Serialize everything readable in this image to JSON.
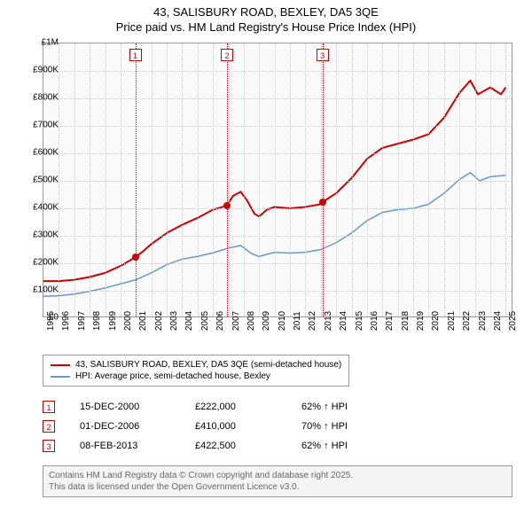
{
  "title": {
    "line1": "43, SALISBURY ROAD, BEXLEY, DA5 3QE",
    "line2": "Price paid vs. HM Land Registry's House Price Index (HPI)"
  },
  "chart": {
    "type": "line",
    "background_color": "#fafafa",
    "border_color": "#999999",
    "grid_color": "#cccccc",
    "ylim": [
      0,
      1000000
    ],
    "ytick_step": 100000,
    "y_ticks": [
      {
        "v": 0,
        "label": "£0"
      },
      {
        "v": 100000,
        "label": "£100K"
      },
      {
        "v": 200000,
        "label": "£200K"
      },
      {
        "v": 300000,
        "label": "£300K"
      },
      {
        "v": 400000,
        "label": "£400K"
      },
      {
        "v": 500000,
        "label": "£500K"
      },
      {
        "v": 600000,
        "label": "£600K"
      },
      {
        "v": 700000,
        "label": "£700K"
      },
      {
        "v": 800000,
        "label": "£800K"
      },
      {
        "v": 900000,
        "label": "£900K"
      },
      {
        "v": 1000000,
        "label": "£1M"
      }
    ],
    "xlim": [
      1995,
      2025.5
    ],
    "x_ticks": [
      1995,
      1996,
      1997,
      1998,
      1999,
      2000,
      2001,
      2002,
      2003,
      2004,
      2005,
      2006,
      2007,
      2008,
      2009,
      2010,
      2011,
      2012,
      2013,
      2014,
      2015,
      2016,
      2017,
      2018,
      2019,
      2020,
      2021,
      2022,
      2023,
      2024,
      2025
    ],
    "marker_line_color": "#cc0000",
    "series": [
      {
        "name": "price_paid",
        "label": "43, SALISBURY ROAD, BEXLEY, DA5 3QE (semi-detached house)",
        "color": "#cc0000",
        "width": 2,
        "data": [
          [
            1995,
            135000
          ],
          [
            1996,
            135000
          ],
          [
            1997,
            140000
          ],
          [
            1998,
            150000
          ],
          [
            1999,
            165000
          ],
          [
            2000,
            190000
          ],
          [
            2000.96,
            222000
          ],
          [
            2001.5,
            245000
          ],
          [
            2002,
            270000
          ],
          [
            2003,
            310000
          ],
          [
            2004,
            340000
          ],
          [
            2005,
            365000
          ],
          [
            2006,
            395000
          ],
          [
            2006.92,
            410000
          ],
          [
            2007.3,
            445000
          ],
          [
            2007.8,
            460000
          ],
          [
            2008.2,
            430000
          ],
          [
            2008.7,
            380000
          ],
          [
            2009,
            370000
          ],
          [
            2009.5,
            395000
          ],
          [
            2010,
            405000
          ],
          [
            2011,
            400000
          ],
          [
            2012,
            405000
          ],
          [
            2013,
            415000
          ],
          [
            2013.11,
            422500
          ],
          [
            2014,
            455000
          ],
          [
            2015,
            510000
          ],
          [
            2016,
            580000
          ],
          [
            2017,
            620000
          ],
          [
            2018,
            635000
          ],
          [
            2019,
            650000
          ],
          [
            2020,
            670000
          ],
          [
            2021,
            730000
          ],
          [
            2022,
            820000
          ],
          [
            2022.7,
            865000
          ],
          [
            2023.2,
            815000
          ],
          [
            2024,
            840000
          ],
          [
            2024.7,
            815000
          ],
          [
            2025,
            840000
          ]
        ]
      },
      {
        "name": "hpi",
        "label": "HPI: Average price, semi-detached house, Bexley",
        "color": "#6699cc",
        "width": 1.5,
        "data": [
          [
            1995,
            80000
          ],
          [
            1996,
            82000
          ],
          [
            1997,
            88000
          ],
          [
            1998,
            98000
          ],
          [
            1999,
            110000
          ],
          [
            2000,
            125000
          ],
          [
            2001,
            140000
          ],
          [
            2002,
            165000
          ],
          [
            2003,
            195000
          ],
          [
            2004,
            215000
          ],
          [
            2005,
            225000
          ],
          [
            2006,
            238000
          ],
          [
            2007,
            255000
          ],
          [
            2007.8,
            265000
          ],
          [
            2008.5,
            235000
          ],
          [
            2009,
            225000
          ],
          [
            2010,
            240000
          ],
          [
            2011,
            237000
          ],
          [
            2012,
            240000
          ],
          [
            2013,
            250000
          ],
          [
            2014,
            275000
          ],
          [
            2015,
            310000
          ],
          [
            2016,
            355000
          ],
          [
            2017,
            385000
          ],
          [
            2018,
            395000
          ],
          [
            2019,
            400000
          ],
          [
            2020,
            415000
          ],
          [
            2021,
            455000
          ],
          [
            2022,
            505000
          ],
          [
            2022.7,
            530000
          ],
          [
            2023.3,
            500000
          ],
          [
            2024,
            515000
          ],
          [
            2025,
            520000
          ]
        ]
      }
    ],
    "sale_points": [
      {
        "x": 2000.96,
        "y": 222000,
        "color": "#cc0000"
      },
      {
        "x": 2006.92,
        "y": 410000,
        "color": "#cc0000"
      },
      {
        "x": 2013.11,
        "y": 422500,
        "color": "#cc0000"
      }
    ],
    "markers": [
      {
        "n": "1",
        "x": 2000.96
      },
      {
        "n": "2",
        "x": 2006.92
      },
      {
        "n": "3",
        "x": 2013.11
      }
    ]
  },
  "legend": {
    "items": [
      {
        "color": "#cc0000",
        "label": "43, SALISBURY ROAD, BEXLEY, DA5 3QE (semi-detached house)"
      },
      {
        "color": "#6699cc",
        "label": "HPI: Average price, semi-detached house, Bexley"
      }
    ]
  },
  "sales": [
    {
      "n": "1",
      "date": "15-DEC-2000",
      "price": "£222,000",
      "pct": "62% ↑ HPI"
    },
    {
      "n": "2",
      "date": "01-DEC-2006",
      "price": "£410,000",
      "pct": "70% ↑ HPI"
    },
    {
      "n": "3",
      "date": "08-FEB-2013",
      "price": "£422,500",
      "pct": "62% ↑ HPI"
    }
  ],
  "footer": {
    "line1": "Contains HM Land Registry data © Crown copyright and database right 2025.",
    "line2": "This data is licensed under the Open Government Licence v3.0."
  },
  "colors": {
    "text": "#000000",
    "footer_text": "#666666",
    "footer_bg": "#f5f5f5"
  },
  "fontsize": {
    "title": 13,
    "axis": 10,
    "legend": 10,
    "table": 11,
    "footer": 10
  }
}
